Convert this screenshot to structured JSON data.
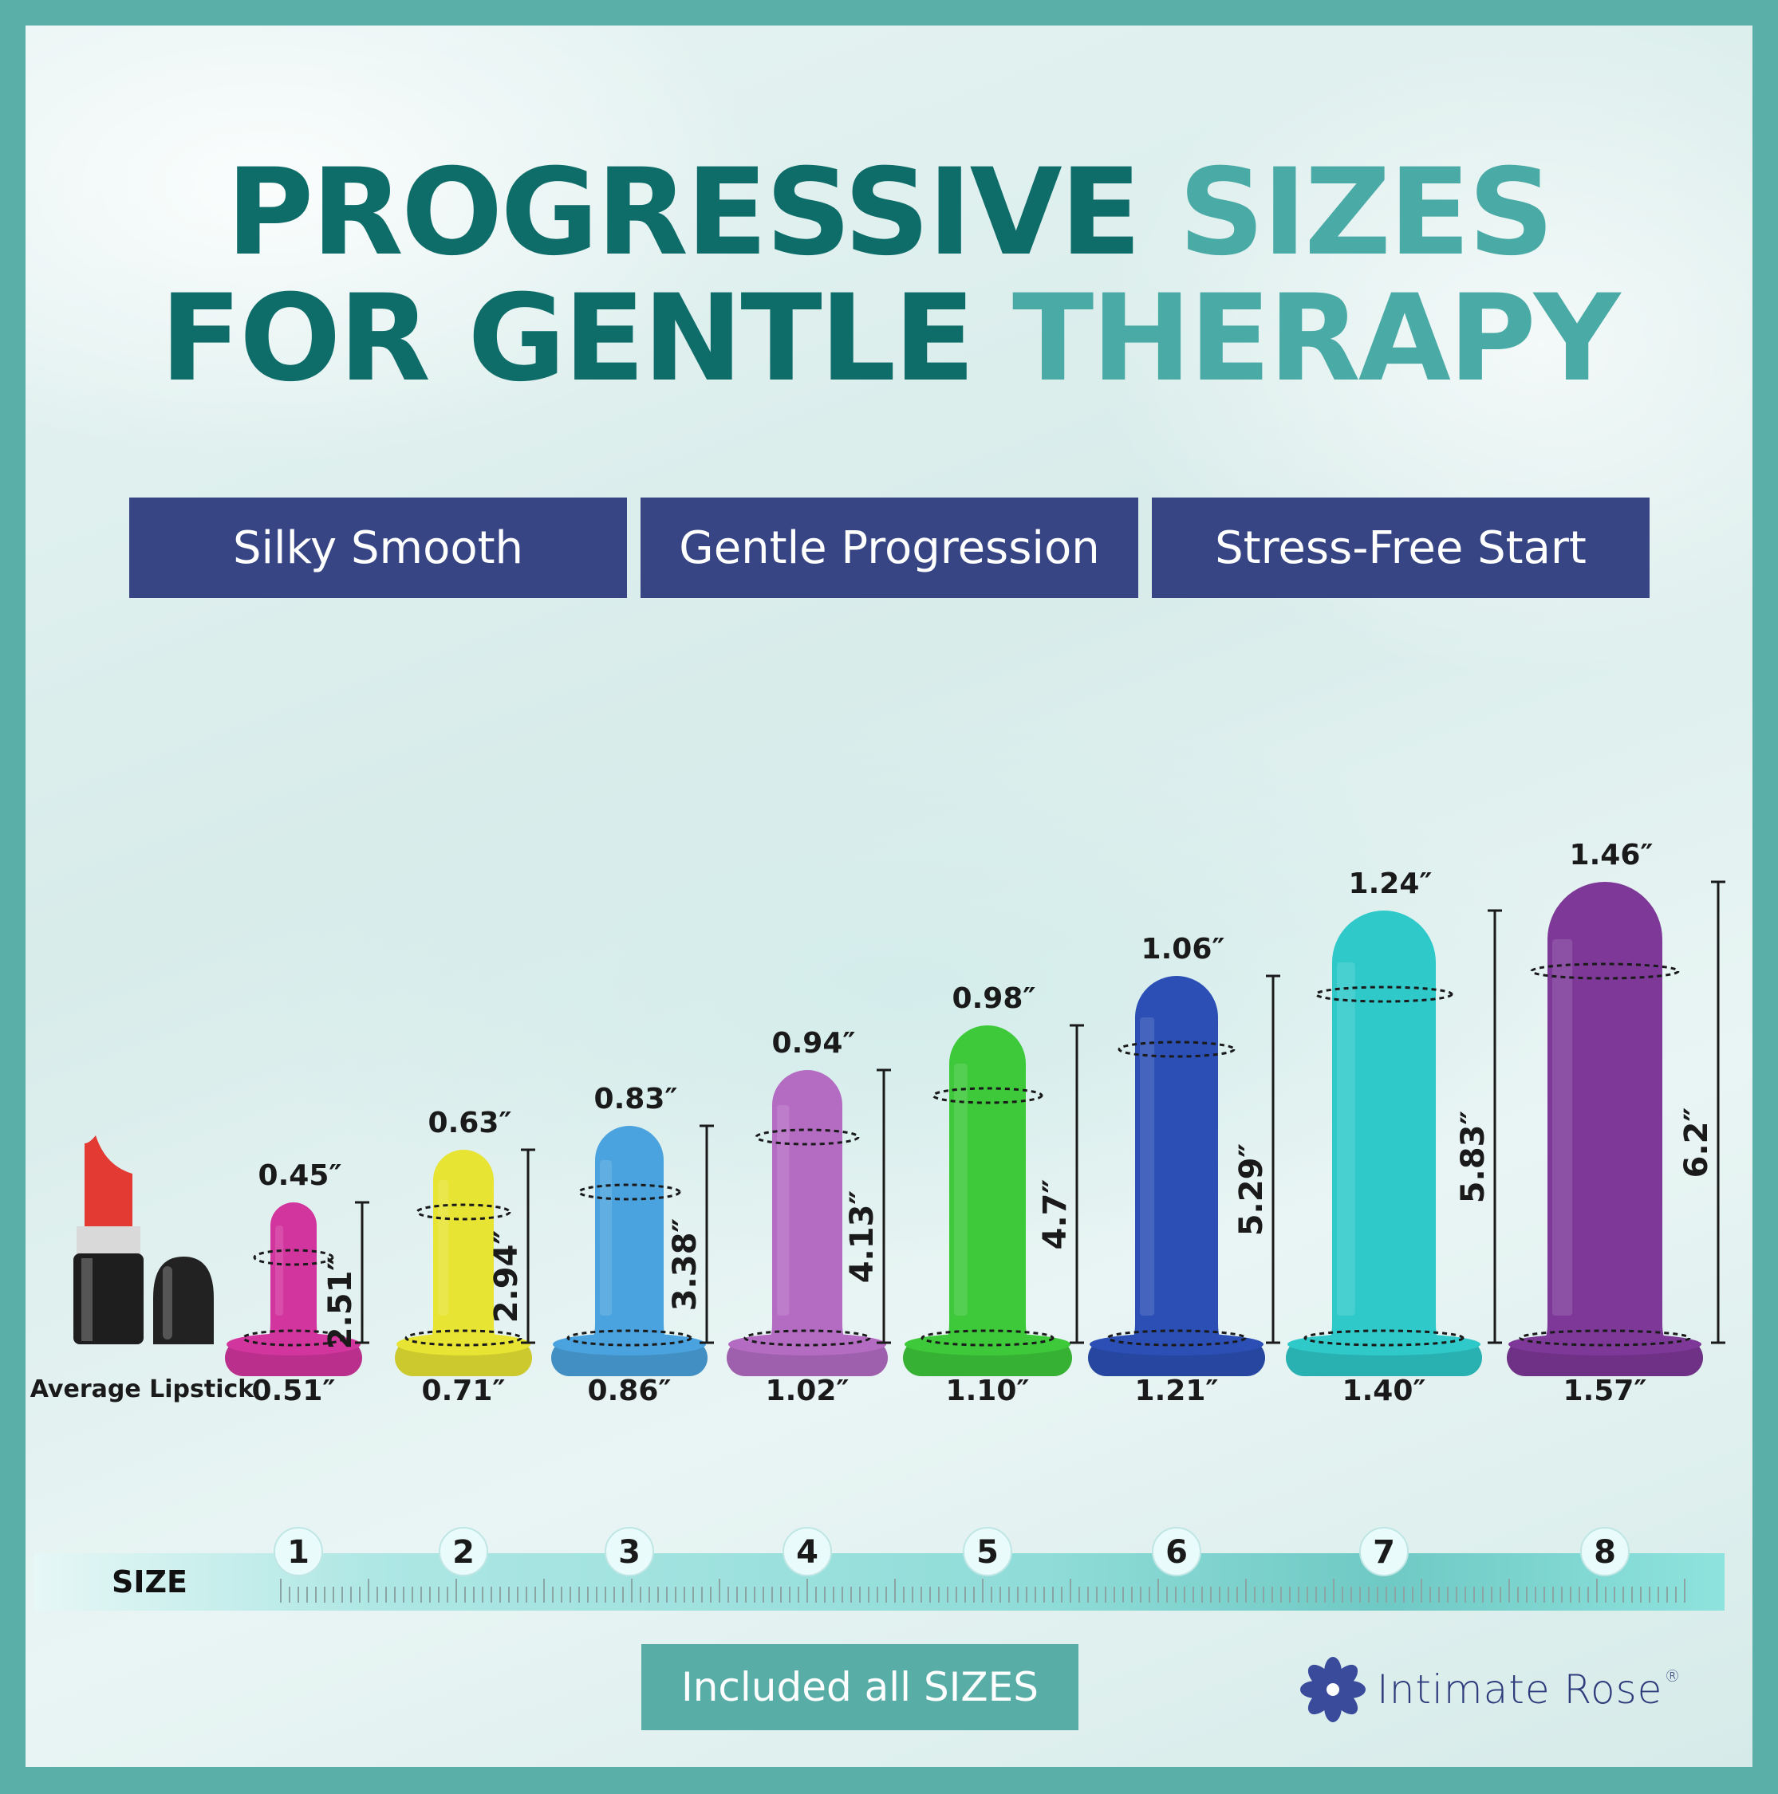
{
  "headline": {
    "line1_dark": "PROGRESSIVE",
    "line1_light": "SIZES",
    "line2_dark": "FOR GENTLE",
    "line2_light": "THERAPY"
  },
  "features": [
    "Silky Smooth",
    "Gentle Progression",
    "Stress-Free Start"
  ],
  "reference_label": "Average Lipstick",
  "size_label": "SIZE",
  "items": [
    {
      "size": "1",
      "tip_width": "0.45″",
      "length": "2.51″",
      "base_width": "0.51″",
      "color": "#d2359e"
    },
    {
      "size": "2",
      "tip_width": "0.63″",
      "length": "2.94″",
      "base_width": "0.71″",
      "color": "#e8e434"
    },
    {
      "size": "3",
      "tip_width": "0.83″",
      "length": "3.38″",
      "base_width": "0.86″",
      "color": "#4aa3de"
    },
    {
      "size": "4",
      "tip_width": "0.94″",
      "length": "4.13″",
      "base_width": "1.02″",
      "color": "#b46cc3"
    },
    {
      "size": "5",
      "tip_width": "0.98″",
      "length": "4.7″",
      "base_width": "1.10″",
      "color": "#3dc93a"
    },
    {
      "size": "6",
      "tip_width": "1.06″",
      "length": "5.29″",
      "base_width": "1.21″",
      "color": "#2c4fb6"
    },
    {
      "size": "7",
      "tip_width": "1.24″",
      "length": "5.83″",
      "base_width": "1.40″",
      "color": "#2fc9c9"
    },
    {
      "size": "8",
      "tip_width": "1.46″",
      "length": "6.2″",
      "base_width": "1.57″",
      "color": "#7d3898"
    }
  ],
  "cta": "Included all SIZES",
  "brand": {
    "name": "Intimate Rose",
    "mark": "®"
  },
  "colors": {
    "frame": "#5aafa8",
    "title_dark": "#0e6c69",
    "title_light": "#4aaaa5",
    "feature_bg": "#374585",
    "brand": "#2f3c7c"
  }
}
